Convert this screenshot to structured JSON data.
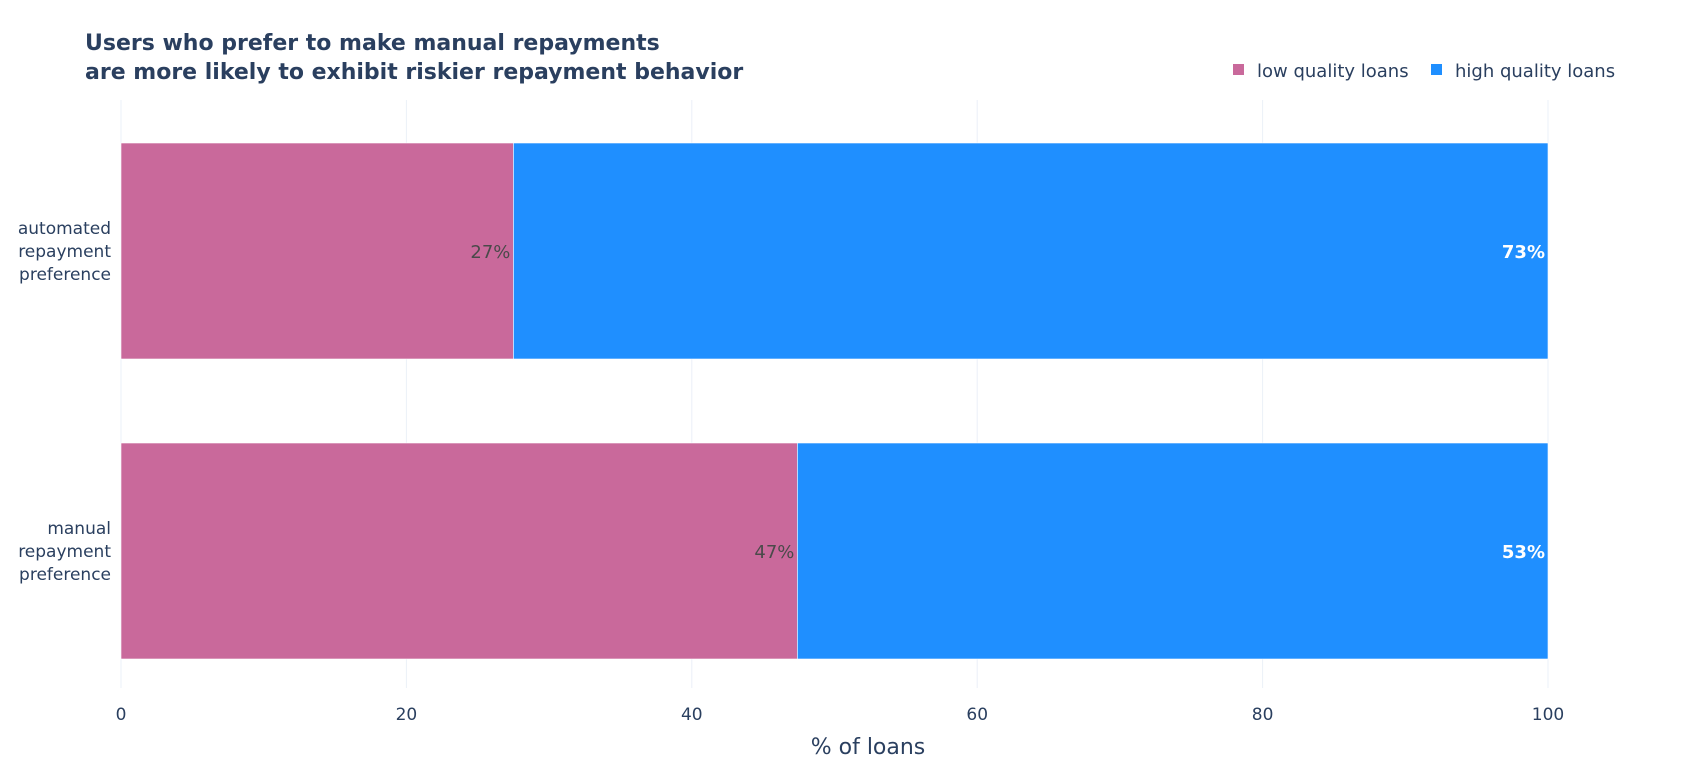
{
  "chart_data": {
    "type": "bar",
    "orientation": "horizontal",
    "barmode": "stack",
    "title_lines": [
      "Users who prefer to make manual repayments",
      "are more likely to exhibit riskier repayment behavior"
    ],
    "xlabel": "% of loans",
    "ylabel": "",
    "xlim": [
      0,
      100
    ],
    "xticks": [
      0,
      20,
      40,
      60,
      80,
      100
    ],
    "grid": true,
    "legend_position": "top-right",
    "categories": [
      [
        "automated",
        "repayment",
        "preference"
      ],
      [
        "manual",
        "repayment",
        "preference"
      ]
    ],
    "series": [
      {
        "name": "low quality loans",
        "color": "#c9699b",
        "label_color": "#4a4a4a",
        "values": [
          27.5,
          47.4
        ],
        "labels": [
          "27%",
          "47%"
        ]
      },
      {
        "name": "high quality loans",
        "color": "#1f8fff",
        "label_color": "#ffffff",
        "values": [
          72.5,
          52.6
        ],
        "labels": [
          "73%",
          "53%"
        ]
      }
    ]
  }
}
